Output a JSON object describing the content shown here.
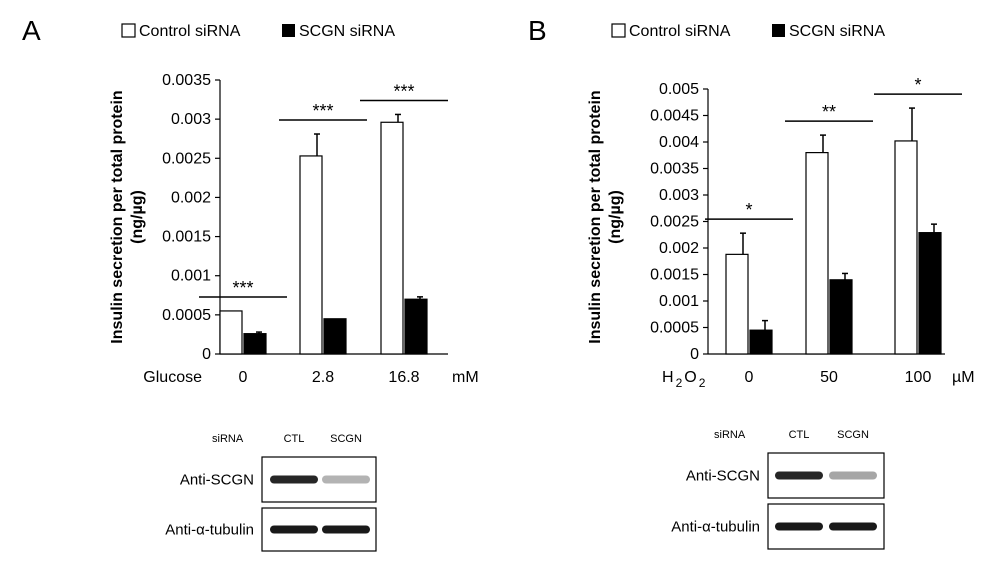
{
  "chart_data": [
    {
      "type": "bar",
      "panel_label": "A",
      "legend": [
        "Control siRNA",
        "SCGN siRNA"
      ],
      "ylabel_line1": "Insulin secretion per total protein",
      "ylabel_line2": "(ng/µg)",
      "xlabel_prefix": "Glucose",
      "xunit": "mM",
      "categories": [
        "0",
        "2.8",
        "16.8"
      ],
      "series": [
        {
          "name": "Control siRNA",
          "values": [
            0.00055,
            0.00253,
            0.00296
          ],
          "errors": [
            0,
            0.00028,
            0.0001
          ]
        },
        {
          "name": "SCGN siRNA",
          "values": [
            0.00026,
            0.00045,
            0.0007
          ],
          "errors": [
            2e-05,
            0,
            3e-05
          ]
        }
      ],
      "significance": [
        "***",
        "***",
        "***"
      ],
      "ylim": [
        0,
        0.0035
      ],
      "yticks": [
        0,
        0.0005,
        0.001,
        0.0015,
        0.002,
        0.0025,
        0.003,
        0.0035
      ],
      "ytick_labels": [
        "0",
        "0.0005",
        "0.001",
        "0.0015",
        "0.002",
        "0.0025",
        "0.003",
        "0.0035"
      ]
    },
    {
      "type": "bar",
      "panel_label": "B",
      "legend": [
        "Control siRNA",
        "SCGN siRNA"
      ],
      "ylabel_line1": "Insulin secretion per total protein",
      "ylabel_line2": "(ng/µg)",
      "xlabel_prefix": "H",
      "xlabel_sub": "2",
      "xlabel_mid": "O",
      "xlabel_sub2": "2",
      "xunit": "µM",
      "categories": [
        "0",
        "50",
        "100"
      ],
      "series": [
        {
          "name": "Control siRNA",
          "values": [
            0.00188,
            0.0038,
            0.00402
          ],
          "errors": [
            0.0004,
            0.00033,
            0.00062
          ]
        },
        {
          "name": "SCGN siRNA",
          "values": [
            0.00045,
            0.0014,
            0.00229
          ],
          "errors": [
            0.00018,
            0.00012,
            0.00016
          ]
        }
      ],
      "significance": [
        "*",
        "**",
        "*"
      ],
      "ylim": [
        0,
        0.005
      ],
      "yticks": [
        0,
        0.0005,
        0.001,
        0.0015,
        0.002,
        0.0025,
        0.003,
        0.0035,
        0.004,
        0.0045,
        0.005
      ],
      "ytick_labels": [
        "0",
        "0.0005",
        "0.001",
        "0.0015",
        "0.002",
        "0.0025",
        "0.003",
        "0.0035",
        "0.004",
        "0.0045",
        "0.005"
      ]
    }
  ],
  "blots": [
    {
      "header_label": "siRNA",
      "lanes": [
        "CTL",
        "SCGN"
      ],
      "rows": [
        {
          "label": "Anti-SCGN",
          "intensities": [
            0.85,
            0.3
          ]
        },
        {
          "label": "Anti-α-tubulin",
          "intensities": [
            0.9,
            0.9
          ]
        }
      ]
    },
    {
      "header_label": "siRNA",
      "lanes": [
        "CTL",
        "SCGN"
      ],
      "rows": [
        {
          "label": "Anti-SCGN",
          "intensities": [
            0.85,
            0.35
          ]
        },
        {
          "label": "Anti-α-tubulin",
          "intensities": [
            0.9,
            0.9
          ]
        }
      ]
    }
  ]
}
